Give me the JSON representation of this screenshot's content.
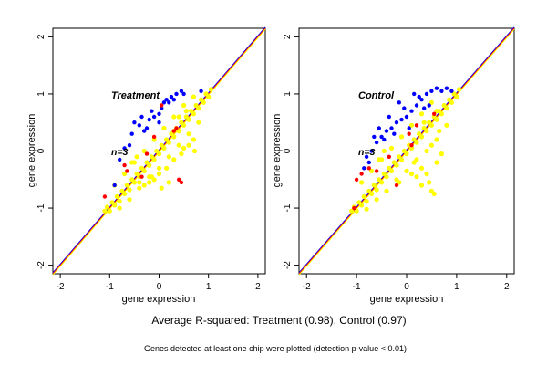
{
  "figure": {
    "caption": "Average R-squared: Treatment (0.98), Control (0.97)",
    "note": "Genes detected at least one chip were plotted (detection p-value < 0.01)"
  },
  "colors": {
    "background": "#ffffff",
    "frame": "#000000",
    "point_bulk": "#ffff00",
    "point_blue": "#0000ff",
    "point_red": "#ff0000",
    "line_blue": "#0000ff",
    "line_red": "#ff0000",
    "line_yellow": "#ffff00",
    "panel_title": "#555555"
  },
  "chart_data": [
    {
      "type": "scatter",
      "title": "Treatment",
      "n_label": "n=3",
      "xlabel": "gene expression",
      "ylabel": "gene expression",
      "xlim": [
        -2.15,
        2.15
      ],
      "ylim": [
        -2.15,
        2.15
      ],
      "xticks": [
        -2,
        -1,
        0,
        1,
        2
      ],
      "yticks": [
        -2,
        -1,
        0,
        1,
        2
      ],
      "grid": false,
      "reference_lines": [
        {
          "color": "blue",
          "intercept": 0.0,
          "slope": 1.0
        },
        {
          "color": "red",
          "intercept": 0.0,
          "slope": 1.0
        },
        {
          "color": "yellow",
          "intercept": 0.0,
          "slope": 1.0
        }
      ],
      "series": [
        {
          "color": "yellow",
          "points": [
            [
              -1.1,
              -1.05
            ],
            [
              -1.05,
              -0.98
            ],
            [
              -1.0,
              -1.05
            ],
            [
              -0.95,
              -0.9
            ],
            [
              -0.9,
              -0.95
            ],
            [
              -0.85,
              -0.8
            ],
            [
              -0.8,
              -0.88
            ],
            [
              -0.75,
              -0.7
            ],
            [
              -0.7,
              -0.75
            ],
            [
              -0.65,
              -0.6
            ],
            [
              -0.6,
              -0.68
            ],
            [
              -0.55,
              -0.5
            ],
            [
              -0.5,
              -0.55
            ],
            [
              -0.45,
              -0.4
            ],
            [
              -0.4,
              -0.45
            ],
            [
              -0.35,
              -0.3
            ],
            [
              -0.3,
              -0.35
            ],
            [
              -0.25,
              -0.2
            ],
            [
              -0.2,
              -0.25
            ],
            [
              -0.15,
              -0.1
            ],
            [
              -0.1,
              -0.15
            ],
            [
              -0.05,
              0.0
            ],
            [
              0.0,
              -0.05
            ],
            [
              0.05,
              0.1
            ],
            [
              0.1,
              0.05
            ],
            [
              0.15,
              0.2
            ],
            [
              0.2,
              0.15
            ],
            [
              0.25,
              0.3
            ],
            [
              0.3,
              0.25
            ],
            [
              0.35,
              0.4
            ],
            [
              0.4,
              0.35
            ],
            [
              0.45,
              0.5
            ],
            [
              0.5,
              0.45
            ],
            [
              0.55,
              0.6
            ],
            [
              0.6,
              0.55
            ],
            [
              0.65,
              0.7
            ],
            [
              0.7,
              0.65
            ],
            [
              0.75,
              0.8
            ],
            [
              0.8,
              0.75
            ],
            [
              0.85,
              0.9
            ],
            [
              0.9,
              0.85
            ],
            [
              0.95,
              1.0
            ],
            [
              1.0,
              0.95
            ],
            [
              1.05,
              1.08
            ],
            [
              -0.9,
              -0.6
            ],
            [
              -0.7,
              -0.4
            ],
            [
              -0.5,
              -0.2
            ],
            [
              -0.3,
              0.0
            ],
            [
              -0.1,
              0.2
            ],
            [
              0.1,
              0.4
            ],
            [
              0.3,
              0.6
            ],
            [
              0.5,
              0.8
            ],
            [
              0.7,
              0.95
            ],
            [
              -0.8,
              -1.0
            ],
            [
              -0.6,
              -0.85
            ],
            [
              -0.4,
              -0.65
            ],
            [
              -0.2,
              -0.45
            ],
            [
              0.0,
              -0.3
            ],
            [
              0.2,
              -0.1
            ],
            [
              0.4,
              0.1
            ],
            [
              0.6,
              0.3
            ],
            [
              0.8,
              0.5
            ],
            [
              -0.4,
              -0.55
            ],
            [
              -0.3,
              -0.6
            ],
            [
              -0.2,
              -0.55
            ],
            [
              -0.1,
              -0.5
            ],
            [
              0.0,
              -0.4
            ],
            [
              0.3,
              -0.15
            ],
            [
              0.5,
              0.05
            ],
            [
              0.7,
              0.2
            ],
            [
              0.72,
              0.0
            ],
            [
              0.2,
              -0.55
            ],
            [
              0.05,
              -0.65
            ],
            [
              -0.15,
              -0.45
            ],
            [
              0.15,
              -0.3
            ],
            [
              0.45,
              -0.05
            ],
            [
              0.6,
              0.1
            ],
            [
              0.3,
              0.35
            ],
            [
              0.4,
              0.6
            ],
            [
              0.55,
              0.7
            ],
            [
              -0.55,
              -0.2
            ],
            [
              -0.45,
              -0.1
            ]
          ]
        },
        {
          "color": "blue",
          "points": [
            [
              -0.55,
              0.3
            ],
            [
              -0.4,
              0.45
            ],
            [
              -0.3,
              0.35
            ],
            [
              -0.2,
              0.55
            ],
            [
              -0.1,
              0.6
            ],
            [
              0.0,
              0.5
            ],
            [
              0.05,
              0.75
            ],
            [
              0.1,
              0.85
            ],
            [
              0.15,
              0.9
            ],
            [
              0.2,
              0.85
            ],
            [
              0.25,
              0.95
            ],
            [
              0.35,
              1.0
            ],
            [
              0.45,
              1.05
            ],
            [
              -0.7,
              0.05
            ],
            [
              -0.8,
              -0.15
            ],
            [
              -0.9,
              -0.6
            ],
            [
              -0.6,
              0.1
            ],
            [
              -0.15,
              0.7
            ],
            [
              0.3,
              0.9
            ],
            [
              0.85,
              1.05
            ],
            [
              -0.5,
              0.5
            ],
            [
              -0.25,
              0.4
            ],
            [
              0.0,
              0.65
            ],
            [
              -0.35,
              0.6
            ],
            [
              0.5,
              1.0
            ]
          ]
        },
        {
          "color": "red",
          "points": [
            [
              -0.7,
              -0.25
            ],
            [
              -0.65,
              -0.35
            ],
            [
              -0.35,
              -0.45
            ],
            [
              0.05,
              0.8
            ],
            [
              0.35,
              0.4
            ],
            [
              0.4,
              -0.5
            ],
            [
              0.45,
              -0.55
            ],
            [
              -1.1,
              -0.8
            ],
            [
              -0.1,
              0.25
            ],
            [
              0.3,
              0.35
            ],
            [
              -0.25,
              -0.05
            ]
          ]
        }
      ]
    },
    {
      "type": "scatter",
      "title": "Control",
      "n_label": "n=3",
      "xlabel": "gene expression",
      "ylabel": "gene expression",
      "xlim": [
        -2.15,
        2.15
      ],
      "ylim": [
        -2.15,
        2.15
      ],
      "xticks": [
        -2,
        -1,
        0,
        1,
        2
      ],
      "yticks": [
        -2,
        -1,
        0,
        1,
        2
      ],
      "grid": false,
      "reference_lines": [
        {
          "color": "blue",
          "intercept": 0.0,
          "slope": 1.0
        },
        {
          "color": "red",
          "intercept": 0.0,
          "slope": 1.0
        },
        {
          "color": "yellow",
          "intercept": 0.0,
          "slope": 1.0
        }
      ],
      "series": [
        {
          "color": "yellow",
          "points": [
            [
              -1.1,
              -1.05
            ],
            [
              -1.05,
              -0.98
            ],
            [
              -1.0,
              -1.05
            ],
            [
              -0.95,
              -0.9
            ],
            [
              -0.9,
              -0.95
            ],
            [
              -0.85,
              -0.8
            ],
            [
              -0.8,
              -0.88
            ],
            [
              -0.75,
              -0.7
            ],
            [
              -0.7,
              -0.75
            ],
            [
              -0.65,
              -0.6
            ],
            [
              -0.6,
              -0.68
            ],
            [
              -0.55,
              -0.5
            ],
            [
              -0.5,
              -0.55
            ],
            [
              -0.45,
              -0.4
            ],
            [
              -0.4,
              -0.45
            ],
            [
              -0.35,
              -0.3
            ],
            [
              -0.3,
              -0.35
            ],
            [
              -0.25,
              -0.2
            ],
            [
              -0.2,
              -0.25
            ],
            [
              -0.15,
              -0.1
            ],
            [
              -0.1,
              -0.15
            ],
            [
              -0.05,
              0.0
            ],
            [
              0.0,
              -0.05
            ],
            [
              0.05,
              0.1
            ],
            [
              0.1,
              0.05
            ],
            [
              0.15,
              0.2
            ],
            [
              0.2,
              0.15
            ],
            [
              0.25,
              0.3
            ],
            [
              0.3,
              0.25
            ],
            [
              0.35,
              0.4
            ],
            [
              0.4,
              0.35
            ],
            [
              0.45,
              0.5
            ],
            [
              0.5,
              0.45
            ],
            [
              0.55,
              0.6
            ],
            [
              0.6,
              0.55
            ],
            [
              0.65,
              0.7
            ],
            [
              0.7,
              0.65
            ],
            [
              0.75,
              0.8
            ],
            [
              0.8,
              0.75
            ],
            [
              0.85,
              0.9
            ],
            [
              0.9,
              0.85
            ],
            [
              0.95,
              1.0
            ],
            [
              1.0,
              0.95
            ],
            [
              1.05,
              1.08
            ],
            [
              -0.9,
              -0.55
            ],
            [
              -0.7,
              -0.35
            ],
            [
              -0.5,
              -0.15
            ],
            [
              -0.3,
              0.05
            ],
            [
              -0.1,
              0.25
            ],
            [
              0.1,
              0.45
            ],
            [
              0.3,
              0.65
            ],
            [
              0.5,
              0.85
            ],
            [
              -0.8,
              -1.02
            ],
            [
              -0.6,
              -0.85
            ],
            [
              -0.4,
              -0.7
            ],
            [
              -0.2,
              -0.5
            ],
            [
              0.0,
              -0.35
            ],
            [
              0.2,
              -0.15
            ],
            [
              0.4,
              0.0
            ],
            [
              0.6,
              0.2
            ],
            [
              0.8,
              0.45
            ],
            [
              0.2,
              -0.45
            ],
            [
              0.3,
              -0.6
            ],
            [
              0.45,
              -0.55
            ],
            [
              0.5,
              -0.7
            ],
            [
              0.55,
              -0.75
            ],
            [
              0.4,
              -0.4
            ],
            [
              0.6,
              -0.2
            ],
            [
              0.7,
              -0.05
            ],
            [
              0.3,
              -0.3
            ],
            [
              0.1,
              -0.4
            ],
            [
              -0.15,
              -0.55
            ],
            [
              0.15,
              -0.2
            ],
            [
              0.5,
              0.1
            ],
            [
              0.65,
              0.35
            ],
            [
              -0.55,
              -0.15
            ],
            [
              -0.45,
              0.0
            ],
            [
              0.35,
              0.5
            ],
            [
              0.6,
              0.7
            ]
          ]
        },
        {
          "color": "blue",
          "points": [
            [
              -0.8,
              -0.1
            ],
            [
              -0.7,
              0.0
            ],
            [
              -0.6,
              0.15
            ],
            [
              -0.5,
              0.25
            ],
            [
              -0.4,
              0.35
            ],
            [
              -0.3,
              0.4
            ],
            [
              -0.2,
              0.5
            ],
            [
              -0.1,
              0.55
            ],
            [
              0.0,
              0.6
            ],
            [
              0.1,
              0.7
            ],
            [
              0.2,
              0.8
            ],
            [
              0.3,
              0.9
            ],
            [
              0.4,
              1.0
            ],
            [
              0.5,
              1.05
            ],
            [
              0.6,
              1.1
            ],
            [
              0.7,
              1.05
            ],
            [
              0.8,
              1.1
            ],
            [
              0.25,
              0.95
            ],
            [
              0.15,
              1.0
            ],
            [
              -0.15,
              0.85
            ],
            [
              -0.35,
              0.6
            ],
            [
              -0.55,
              0.4
            ],
            [
              0.35,
              0.75
            ],
            [
              -0.45,
              0.2
            ],
            [
              0.05,
              0.4
            ],
            [
              -0.25,
              0.3
            ],
            [
              -0.65,
              0.25
            ],
            [
              -0.75,
              -0.2
            ],
            [
              0.45,
              0.8
            ],
            [
              -0.05,
              0.75
            ],
            [
              0.9,
              1.05
            ],
            [
              -0.85,
              -0.3
            ]
          ]
        },
        {
          "color": "red",
          "points": [
            [
              -0.6,
              -0.35
            ],
            [
              -0.75,
              -0.3
            ],
            [
              -0.9,
              -0.4
            ],
            [
              -1.0,
              -0.5
            ],
            [
              0.2,
              0.45
            ],
            [
              0.05,
              0.3
            ],
            [
              -0.2,
              -0.6
            ],
            [
              0.55,
              0.65
            ],
            [
              -1.05,
              -1.0
            ],
            [
              -0.35,
              -0.1
            ],
            [
              0.1,
              0.1
            ]
          ]
        }
      ]
    }
  ]
}
